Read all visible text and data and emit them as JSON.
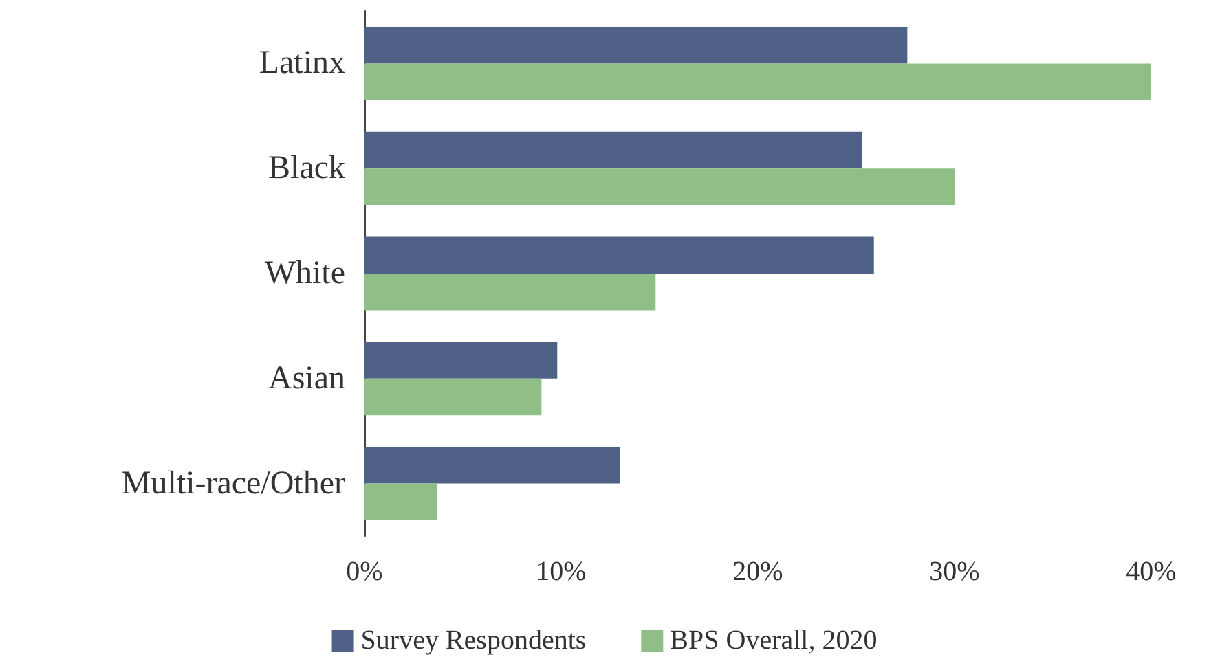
{
  "chart_data": {
    "type": "bar",
    "orientation": "horizontal",
    "categories": [
      "Latinx",
      "Black",
      "White",
      "Asian",
      "Multi-race/Other"
    ],
    "series": [
      {
        "name": "Survey Respondents",
        "color": "#4f6186",
        "values": [
          27.6,
          25.3,
          25.9,
          9.8,
          13.0
        ]
      },
      {
        "name": "BPS Overall, 2020",
        "color": "#8fbf87",
        "values": [
          40,
          30,
          14.8,
          9,
          3.7
        ]
      }
    ],
    "xlim": [
      0,
      40
    ],
    "xticks": [
      {
        "value": 0,
        "label": "0%"
      },
      {
        "value": 10,
        "label": "10%"
      },
      {
        "value": 20,
        "label": "20%"
      },
      {
        "value": 30,
        "label": "30%"
      },
      {
        "value": 40,
        "label": "40%"
      }
    ],
    "grid": false,
    "legend": "bottom"
  }
}
